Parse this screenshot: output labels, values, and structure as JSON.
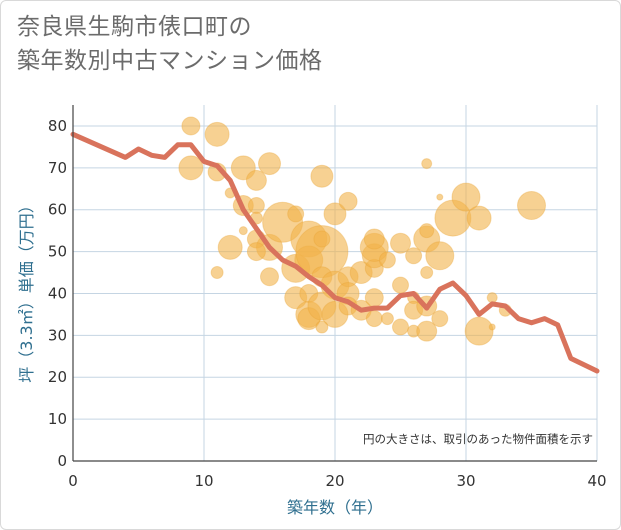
{
  "chart_data": {
    "type": "scatter",
    "title_lines": [
      "奈良県生駒市俵口町の",
      "築年数別中古マンション価格"
    ],
    "xlabel": "築年数（年）",
    "ylabel": "坪（3.3㎡）単価（万円）",
    "xlim": [
      0,
      40
    ],
    "ylim": [
      0,
      85
    ],
    "x_ticks": [
      0,
      10,
      20,
      30,
      40
    ],
    "y_ticks": [
      0,
      10,
      20,
      30,
      40,
      50,
      60,
      70,
      80
    ],
    "grid": true,
    "note": "円の大きさは、取引のあった物件面積を示す",
    "colors": {
      "bubble": "#f2b24a",
      "line": "#d9735c",
      "grid": "#c5d5e3"
    },
    "bubbles": [
      {
        "x": 9,
        "y": 80,
        "s": 9
      },
      {
        "x": 11,
        "y": 78,
        "s": 12
      },
      {
        "x": 9,
        "y": 70,
        "s": 12
      },
      {
        "x": 11,
        "y": 69,
        "s": 9
      },
      {
        "x": 13,
        "y": 70,
        "s": 12
      },
      {
        "x": 15,
        "y": 71,
        "s": 11
      },
      {
        "x": 12,
        "y": 64,
        "s": 5
      },
      {
        "x": 14,
        "y": 67,
        "s": 10
      },
      {
        "x": 13,
        "y": 61,
        "s": 10
      },
      {
        "x": 14,
        "y": 61,
        "s": 8
      },
      {
        "x": 14,
        "y": 58,
        "s": 6
      },
      {
        "x": 12,
        "y": 51,
        "s": 12
      },
      {
        "x": 14,
        "y": 53,
        "s": 9
      },
      {
        "x": 15,
        "y": 51,
        "s": 13
      },
      {
        "x": 14,
        "y": 50,
        "s": 9
      },
      {
        "x": 11,
        "y": 45,
        "s": 6
      },
      {
        "x": 15,
        "y": 44,
        "s": 9
      },
      {
        "x": 13,
        "y": 55,
        "s": 4
      },
      {
        "x": 16,
        "y": 57,
        "s": 20
      },
      {
        "x": 17,
        "y": 59,
        "s": 8
      },
      {
        "x": 18,
        "y": 53,
        "s": 18
      },
      {
        "x": 17,
        "y": 46,
        "s": 14
      },
      {
        "x": 18,
        "y": 48,
        "s": 14
      },
      {
        "x": 19,
        "y": 50,
        "s": 26
      },
      {
        "x": 19,
        "y": 53,
        "s": 8
      },
      {
        "x": 19,
        "y": 68,
        "s": 11
      },
      {
        "x": 20,
        "y": 59,
        "s": 11
      },
      {
        "x": 21,
        "y": 62,
        "s": 9
      },
      {
        "x": 19,
        "y": 44,
        "s": 10
      },
      {
        "x": 20,
        "y": 42,
        "s": 14
      },
      {
        "x": 21,
        "y": 44,
        "s": 10
      },
      {
        "x": 22,
        "y": 45,
        "s": 11
      },
      {
        "x": 23,
        "y": 46,
        "s": 9
      },
      {
        "x": 17,
        "y": 39,
        "s": 11
      },
      {
        "x": 18,
        "y": 40,
        "s": 9
      },
      {
        "x": 18,
        "y": 35,
        "s": 13
      },
      {
        "x": 18,
        "y": 34,
        "s": 11
      },
      {
        "x": 19,
        "y": 37,
        "s": 14
      },
      {
        "x": 20,
        "y": 35,
        "s": 13
      },
      {
        "x": 19,
        "y": 32,
        "s": 6
      },
      {
        "x": 21,
        "y": 40,
        "s": 11
      },
      {
        "x": 21,
        "y": 37,
        "s": 9
      },
      {
        "x": 22,
        "y": 36,
        "s": 10
      },
      {
        "x": 23,
        "y": 39,
        "s": 9
      },
      {
        "x": 23,
        "y": 34,
        "s": 8
      },
      {
        "x": 24,
        "y": 34,
        "s": 6
      },
      {
        "x": 23,
        "y": 49,
        "s": 12
      },
      {
        "x": 23,
        "y": 51,
        "s": 14
      },
      {
        "x": 23,
        "y": 53,
        "s": 10
      },
      {
        "x": 25,
        "y": 52,
        "s": 10
      },
      {
        "x": 24,
        "y": 48,
        "s": 8
      },
      {
        "x": 25,
        "y": 42,
        "s": 8
      },
      {
        "x": 26,
        "y": 49,
        "s": 8
      },
      {
        "x": 27,
        "y": 53,
        "s": 13
      },
      {
        "x": 27,
        "y": 55,
        "s": 7
      },
      {
        "x": 28,
        "y": 49,
        "s": 14
      },
      {
        "x": 27,
        "y": 45,
        "s": 6
      },
      {
        "x": 29,
        "y": 58,
        "s": 18
      },
      {
        "x": 30,
        "y": 63,
        "s": 14
      },
      {
        "x": 31,
        "y": 58,
        "s": 12
      },
      {
        "x": 27,
        "y": 71,
        "s": 5
      },
      {
        "x": 28,
        "y": 63,
        "s": 3
      },
      {
        "x": 26,
        "y": 39,
        "s": 6
      },
      {
        "x": 26,
        "y": 36,
        "s": 9
      },
      {
        "x": 27,
        "y": 37,
        "s": 10
      },
      {
        "x": 28,
        "y": 34,
        "s": 8
      },
      {
        "x": 25,
        "y": 32,
        "s": 8
      },
      {
        "x": 26,
        "y": 31,
        "s": 6
      },
      {
        "x": 27,
        "y": 31,
        "s": 10
      },
      {
        "x": 31,
        "y": 31,
        "s": 14
      },
      {
        "x": 32,
        "y": 39,
        "s": 5
      },
      {
        "x": 35,
        "y": 61,
        "s": 14
      },
      {
        "x": 33,
        "y": 36,
        "s": 6
      },
      {
        "x": 32,
        "y": 32,
        "s": 3
      }
    ],
    "series": [
      {
        "values": [
          [
            0,
            78
          ],
          [
            4,
            72.5
          ],
          [
            5,
            74.5
          ],
          [
            6,
            73
          ],
          [
            7,
            72.5
          ],
          [
            8,
            75.5
          ],
          [
            9,
            75.5
          ],
          [
            10,
            71.5
          ],
          [
            11,
            70.5
          ],
          [
            12,
            67
          ],
          [
            13,
            60
          ],
          [
            14,
            55.5
          ],
          [
            15,
            51
          ],
          [
            16,
            48
          ],
          [
            17,
            46.5
          ],
          [
            18,
            44
          ],
          [
            19,
            42
          ],
          [
            20,
            39
          ],
          [
            21,
            38
          ],
          [
            22,
            36
          ],
          [
            23,
            36.5
          ],
          [
            24,
            36.5
          ],
          [
            25,
            39.5
          ],
          [
            26,
            40
          ],
          [
            27,
            36.5
          ],
          [
            28,
            41
          ],
          [
            29,
            42.5
          ],
          [
            30,
            39.5
          ],
          [
            31,
            35
          ],
          [
            32,
            37.5
          ],
          [
            33,
            37
          ],
          [
            34,
            34
          ],
          [
            35,
            33
          ],
          [
            36,
            34
          ],
          [
            37,
            32.5
          ],
          [
            38,
            24.5
          ],
          [
            40,
            21.5
          ]
        ]
      }
    ]
  }
}
